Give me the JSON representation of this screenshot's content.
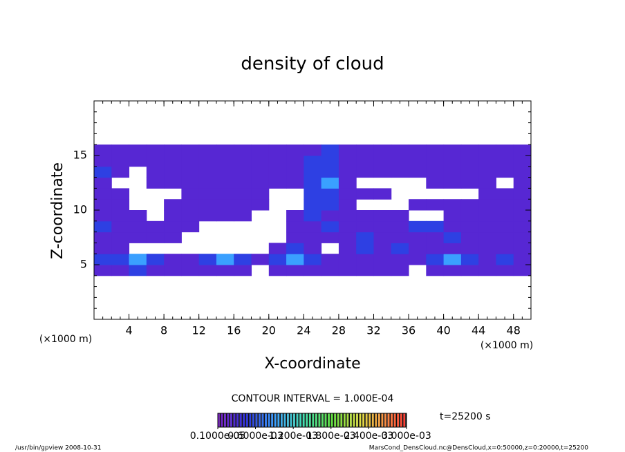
{
  "chart_data": {
    "type": "heatmap",
    "title": "density of cloud",
    "x_label": "X-coordinate",
    "y_label": "Z-coordinate",
    "x_unit_left": "(×1000 m)",
    "x_unit_right": "(×1000 m)",
    "xlim": [
      0,
      50
    ],
    "xticks": [
      4,
      8,
      12,
      16,
      20,
      24,
      28,
      32,
      36,
      40,
      44,
      48
    ],
    "ylim": [
      0,
      20
    ],
    "yticks": [
      5,
      10,
      15
    ],
    "contour_interval": "CONTOUR INTERVAL = 1.000E-04",
    "time_label": "t=25200 s",
    "footer_left": "/usr/bin/gpview   2008-10-31",
    "footer_right": "MarsCond_DensCloud.nc@DensCloud,x=0:50000,z=0:20000,t=25200",
    "colorbar_ticks": [
      {
        "value": 1e-06,
        "label": "0.1000e-05"
      },
      {
        "value": 0.0006,
        "label": "0.6000e-03"
      },
      {
        "value": 0.0012,
        "label": "1.200e-03"
      },
      {
        "value": 0.0018,
        "label": "1.800e-03"
      },
      {
        "value": 0.0024,
        "label": "2.400e-03"
      },
      {
        "value": 0.003,
        "label": "3.000e-03"
      }
    ],
    "x": [
      1,
      3,
      5,
      7,
      9,
      11,
      13,
      15,
      17,
      19,
      21,
      23,
      25,
      27,
      29,
      31,
      33,
      35,
      37,
      39,
      41,
      43,
      45,
      47,
      49
    ],
    "y": [
      4.5,
      5.5,
      6.5,
      7.5,
      8.5,
      9.5,
      10.5,
      11.5,
      12.5,
      13.5,
      14.5,
      15.5
    ],
    "z": [
      [
        0.0002,
        0.0002,
        0.0005,
        0.0002,
        0.0002,
        0.0002,
        0.0002,
        0.0002,
        0.0002,
        null,
        0.0002,
        0.0002,
        0.0002,
        0.0002,
        0.0002,
        0.0002,
        0.0002,
        0.0002,
        null,
        0.0002,
        0.0002,
        0.0002,
        0.0002,
        0.0002,
        0.0002
      ],
      [
        0.0005,
        0.0005,
        0.0009,
        0.0005,
        0.0002,
        0.0002,
        0.0005,
        0.0009,
        0.0005,
        0.0002,
        0.0005,
        0.0009,
        0.0005,
        0.0002,
        0.0002,
        0.0002,
        0.0002,
        0.0002,
        0.0002,
        0.0005,
        0.0009,
        0.0005,
        0.0002,
        0.0005,
        0.0002
      ],
      [
        0.0002,
        0.0002,
        null,
        null,
        null,
        null,
        null,
        null,
        null,
        null,
        0.0002,
        0.0005,
        0.0002,
        null,
        0.0002,
        0.0005,
        0.0002,
        0.0005,
        0.0002,
        0.0002,
        0.0002,
        0.0002,
        0.0002,
        0.0002,
        0.0002
      ],
      [
        0.0002,
        0.0002,
        0.0002,
        0.0002,
        0.0002,
        null,
        null,
        null,
        null,
        null,
        null,
        0.0002,
        0.0002,
        0.0002,
        0.0002,
        0.0005,
        0.0002,
        0.0002,
        0.0002,
        0.0002,
        0.0005,
        0.0002,
        0.0002,
        0.0002,
        0.0002
      ],
      [
        0.0005,
        0.0002,
        0.0002,
        0.0002,
        0.0002,
        0.0002,
        null,
        null,
        null,
        null,
        null,
        0.0002,
        0.0002,
        0.0005,
        0.0002,
        0.0002,
        0.0002,
        0.0002,
        0.0005,
        0.0005,
        0.0002,
        0.0002,
        0.0002,
        0.0002,
        0.0002
      ],
      [
        0.0002,
        0.0002,
        0.0002,
        null,
        0.0002,
        0.0002,
        0.0002,
        0.0002,
        0.0002,
        null,
        null,
        0.0002,
        0.0005,
        0.0002,
        0.0002,
        0.0002,
        0.0002,
        0.0002,
        null,
        null,
        0.0002,
        0.0002,
        0.0002,
        0.0002,
        0.0002
      ],
      [
        0.0002,
        0.0002,
        null,
        null,
        0.0002,
        0.0002,
        0.0002,
        0.0002,
        0.0002,
        0.0002,
        null,
        null,
        0.0005,
        0.0005,
        0.0002,
        null,
        null,
        null,
        0.0002,
        0.0002,
        0.0002,
        0.0002,
        0.0002,
        0.0002,
        0.0002
      ],
      [
        0.0002,
        0.0002,
        null,
        null,
        null,
        0.0002,
        0.0002,
        0.0002,
        0.0002,
        0.0002,
        null,
        null,
        0.0005,
        0.0005,
        0.0002,
        0.0002,
        0.0002,
        null,
        null,
        null,
        null,
        null,
        0.0002,
        0.0002,
        0.0002
      ],
      [
        0.0002,
        null,
        null,
        0.0002,
        0.0002,
        0.0002,
        0.0002,
        0.0002,
        0.0002,
        0.0002,
        0.0002,
        0.0002,
        0.0005,
        0.0009,
        0.0002,
        null,
        null,
        null,
        null,
        0.0002,
        0.0002,
        0.0002,
        0.0002,
        null,
        0.0002
      ],
      [
        0.0005,
        0.0002,
        null,
        0.0002,
        0.0002,
        0.0002,
        0.0002,
        0.0002,
        0.0002,
        0.0002,
        0.0002,
        0.0002,
        0.0005,
        0.0005,
        0.0002,
        0.0002,
        0.0002,
        0.0002,
        0.0002,
        0.0002,
        0.0002,
        0.0002,
        0.0002,
        0.0002,
        0.0002
      ],
      [
        0.0002,
        0.0002,
        0.0002,
        0.0002,
        0.0002,
        0.0002,
        0.0002,
        0.0002,
        0.0002,
        0.0002,
        0.0002,
        0.0002,
        0.0005,
        0.0005,
        0.0002,
        0.0002,
        0.0002,
        0.0002,
        0.0002,
        0.0002,
        0.0002,
        0.0002,
        0.0002,
        0.0002,
        0.0002
      ],
      [
        0.0002,
        0.0002,
        0.0002,
        0.0002,
        0.0002,
        0.0002,
        0.0002,
        0.0002,
        0.0002,
        0.0002,
        0.0002,
        0.0002,
        0.0002,
        0.0005,
        0.0002,
        0.0002,
        0.0002,
        0.0002,
        0.0002,
        0.0002,
        0.0002,
        0.0002,
        0.0002,
        0.0002,
        0.0002
      ]
    ]
  }
}
